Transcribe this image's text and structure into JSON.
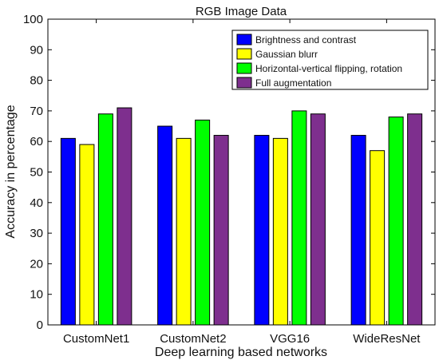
{
  "chart_data": {
    "type": "bar",
    "title": "RGB Image Data",
    "xlabel": "Deep learning based networks",
    "ylabel": "Accuracy in percentage",
    "categories": [
      "CustomNet1",
      "CustomNet2",
      "VGG16",
      "WideResNet"
    ],
    "ylim": [
      0,
      100
    ],
    "yticks": [
      0,
      10,
      20,
      30,
      40,
      50,
      60,
      70,
      80,
      90,
      100
    ],
    "grid": false,
    "legend_position": "top-right",
    "series": [
      {
        "name": "Brightness and contrast",
        "color": "#0000ff",
        "values": [
          61,
          65,
          62,
          62
        ]
      },
      {
        "name": "Gaussian blurr",
        "color": "#ffff00",
        "values": [
          59,
          61,
          61,
          57
        ]
      },
      {
        "name": "Horizontal-vertical flipping, rotation",
        "color": "#00ff00",
        "values": [
          69,
          67,
          70,
          68
        ]
      },
      {
        "name": "Full augmentation",
        "color": "#7e2f8e",
        "values": [
          71,
          62,
          69,
          69
        ]
      }
    ]
  }
}
